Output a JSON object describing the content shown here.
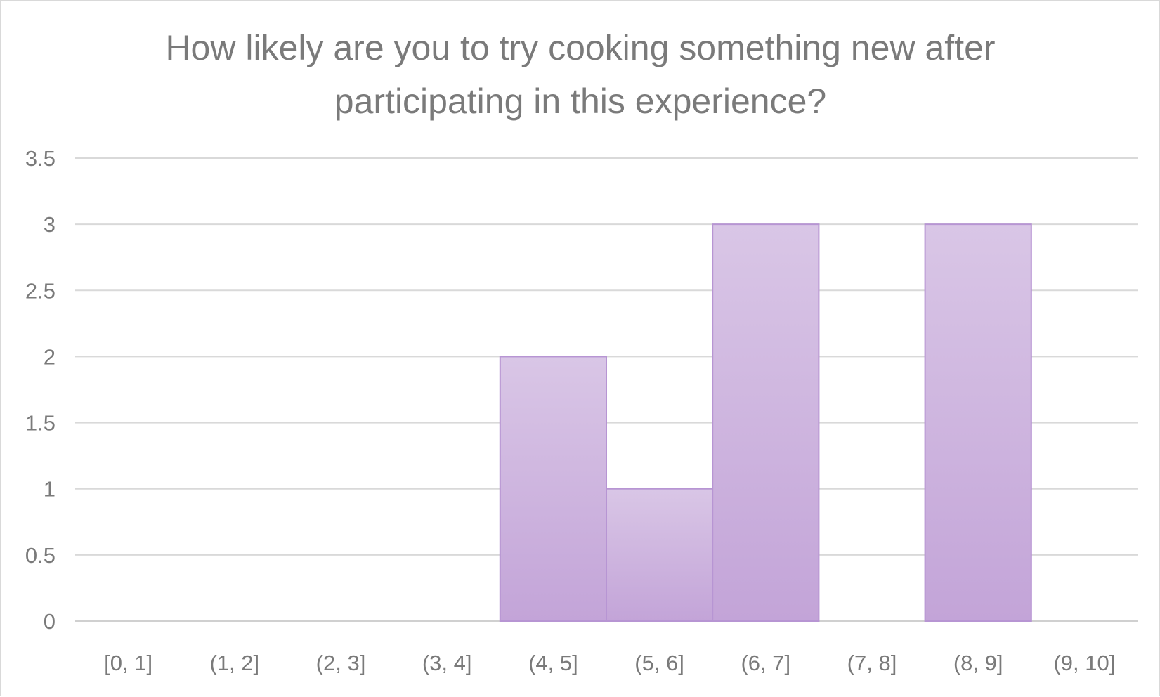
{
  "chart_data": {
    "type": "bar",
    "title_lines": [
      "How likely are you to try cooking something new after",
      "participating in this experience?"
    ],
    "categories": [
      "[0, 1]",
      "(1, 2]",
      "(2, 3]",
      "(3, 4]",
      "(4, 5]",
      "(5, 6]",
      "(6, 7]",
      "(7, 8]",
      "(8, 9]",
      "(9, 10]"
    ],
    "values": [
      0,
      0,
      0,
      0,
      2,
      1,
      3,
      0,
      3,
      0
    ],
    "ylim": [
      0,
      3.5
    ],
    "yticks": [
      "0",
      "0.5",
      "1",
      "1.5",
      "2",
      "2.5",
      "3",
      "3.5"
    ],
    "grid": true,
    "colors": {
      "bar_top": "#d9c6e6",
      "bar_bottom": "#c3a4d8",
      "bar_border": "#b795d3"
    }
  }
}
